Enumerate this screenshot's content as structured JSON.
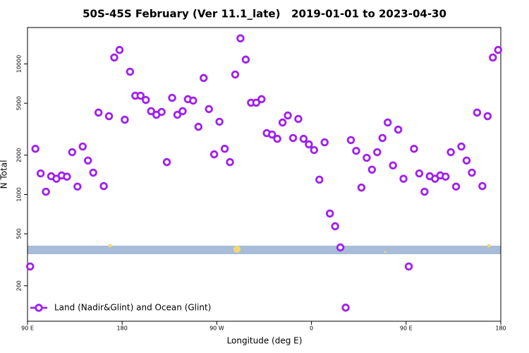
{
  "chart_data": {
    "type": "scatter",
    "title": "50S-45S February (Ver 11.1_late)   2019-01-01 to 2023-04-30",
    "xlabel": "Longitude (deg E)",
    "ylabel": "N Total",
    "x": [
      92.5,
      97.5,
      102.5,
      107.5,
      112.5,
      117.5,
      122.5,
      127.5,
      132.5,
      137.5,
      142.5,
      147.5,
      152.5,
      157.5,
      162.5,
      167.5,
      172.5,
      177.5,
      182.5,
      187.5,
      192.5,
      197.5,
      202.5,
      207.5,
      212.5,
      217.5,
      222.5,
      227.5,
      232.5,
      237.5,
      242.5,
      247.5,
      252.5,
      257.5,
      262.5,
      267.5,
      272.5,
      277.5,
      282.5,
      287.5,
      292.5,
      297.5,
      302.5,
      307.5,
      312.5,
      317.5,
      322.5,
      327.5,
      332.5,
      337.5,
      342.5,
      347.5,
      352.5,
      357.5,
      362.5,
      367.5,
      372.5,
      377.5,
      382.5,
      387.5,
      392.5,
      397.5,
      402.5,
      407.5,
      412.5,
      417.5,
      422.5,
      427.5,
      432.5,
      437.5,
      442.5,
      447.5,
      452.5,
      457.5,
      462.5,
      467.5,
      472.5,
      477.5,
      482.5,
      487.5,
      492.5,
      497.5,
      502.5,
      507.5,
      512.5,
      517.5,
      522.5,
      527.5,
      532.5,
      537.5
    ],
    "series": [
      {
        "name": "Land (Nadir&Glint) and Ocean (Glint)",
        "color": "#a020f0",
        "values": [
          281,
          2240,
          1450,
          1050,
          1380,
          1320,
          1400,
          1370,
          2110,
          1150,
          2330,
          1820,
          1470,
          4240,
          1160,
          3980,
          11200,
          12800,
          3740,
          8720,
          5710,
          5710,
          5300,
          4350,
          4080,
          4290,
          1770,
          5500,
          4080,
          4350,
          5370,
          5240,
          3300,
          7800,
          4510,
          2030,
          3610,
          2240,
          1770,
          8300,
          15700,
          10800,
          5050,
          5050,
          5370,
          2950,
          2880,
          2670,
          3560,
          4030,
          2710,
          3790,
          2670,
          2420,
          2190,
          1300,
          2510,
          715,
          571,
          393,
          136,
          2610,
          2160,
          1130,
          1910,
          1550,
          2110,
          2710,
          3560,
          1670,
          3140,
          1320,
          281,
          2240,
          1450,
          1050,
          1380,
          1320,
          1400,
          1370,
          2110,
          1150,
          2330,
          1820,
          1470,
          4240,
          1160,
          3980,
          11200,
          12800
        ]
      }
    ],
    "xlim": [
      90,
      540
    ],
    "xticks": [
      {
        "value": 90,
        "label": "90 E"
      },
      180,
      {
        "value": 270,
        "label": "90 W"
      },
      {
        "value": 360,
        "label": "0"
      },
      {
        "value": 450,
        "label": "90 E"
      },
      {
        "value": 540,
        "label": "180"
      }
    ],
    "ylim": [
      107,
      19000
    ],
    "ylog": true,
    "yticks": [
      200,
      500,
      1000,
      2000,
      5000,
      10000
    ],
    "legend": "bottom-left"
  }
}
